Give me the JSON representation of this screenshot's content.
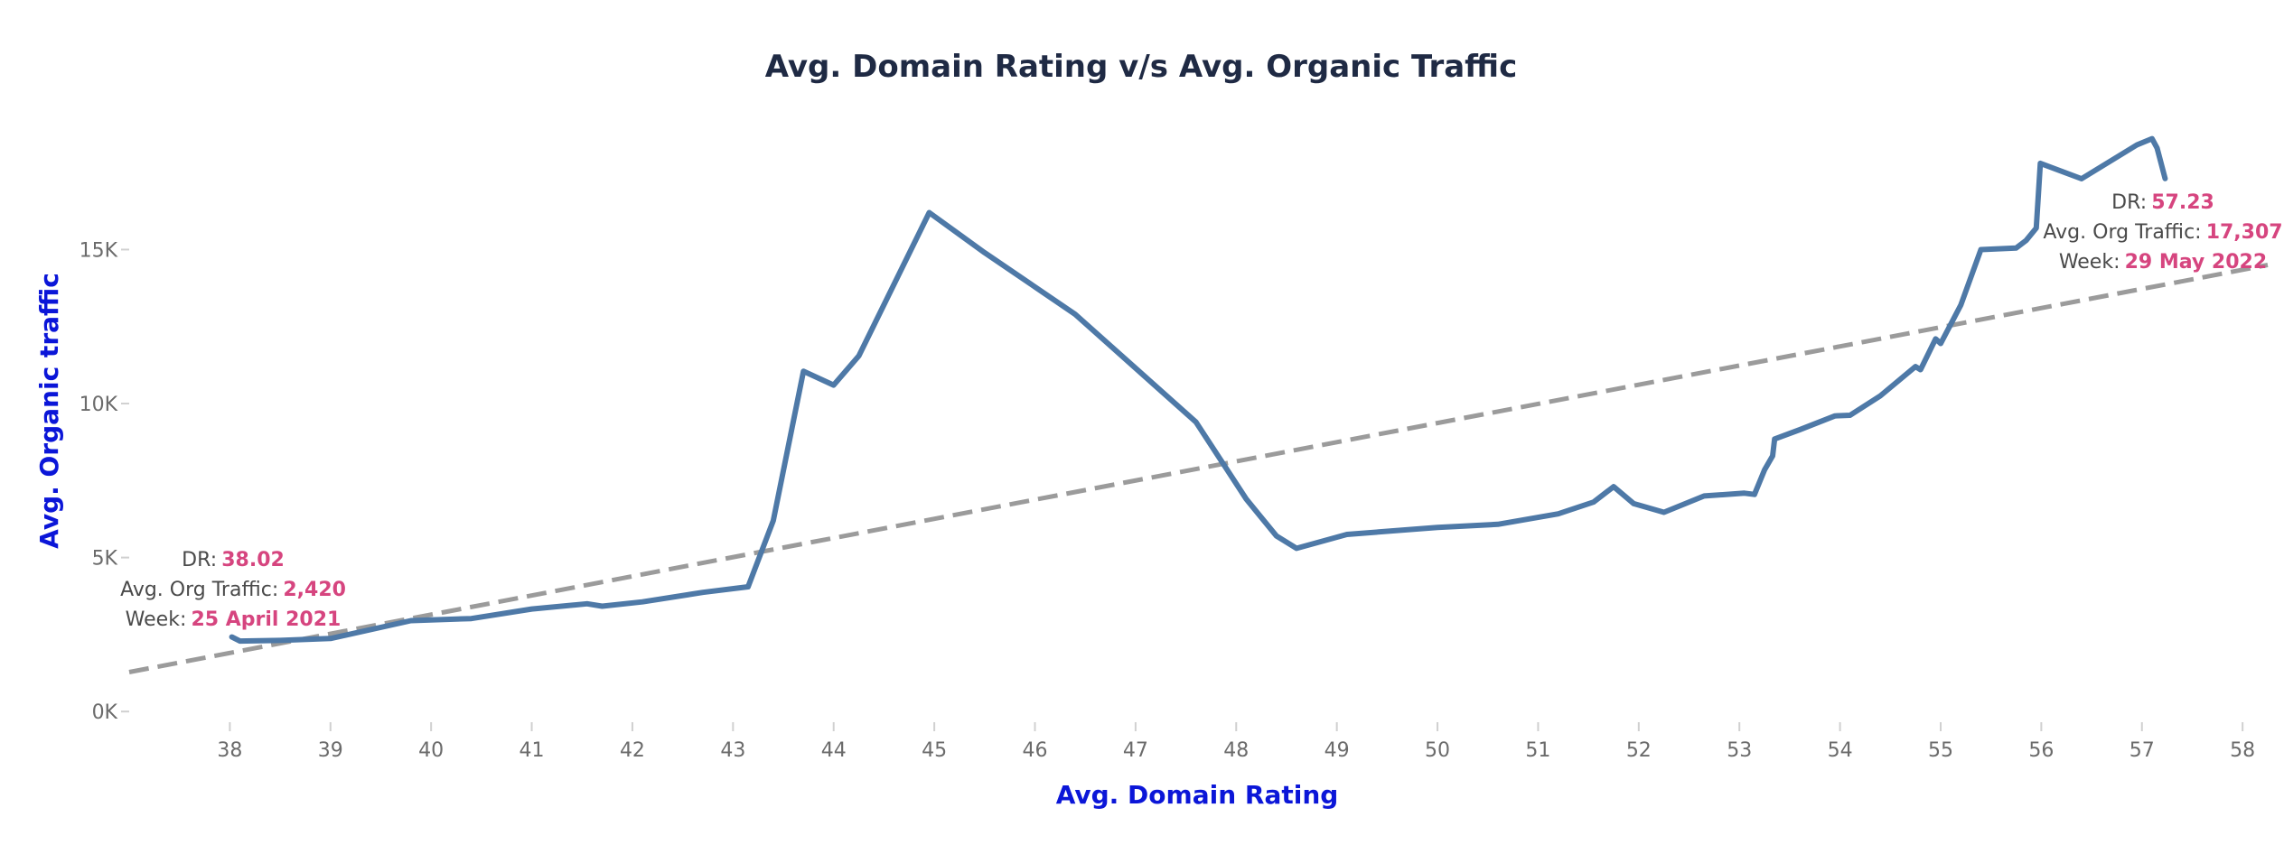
{
  "chart_data": {
    "type": "line",
    "title": "Avg. Domain Rating v/s Avg. Organic Traffic",
    "xlabel": "Avg. Domain Rating",
    "ylabel": "Avg. Organic traffic",
    "xlim": [
      37.0,
      58.25
    ],
    "ylim": [
      -200,
      19000
    ],
    "x_ticks": [
      38,
      39,
      40,
      41,
      42,
      43,
      44,
      45,
      46,
      47,
      48,
      49,
      50,
      51,
      52,
      53,
      54,
      55,
      56,
      57,
      58
    ],
    "y_ticks": [
      {
        "value": 0,
        "label": "0K"
      },
      {
        "value": 5000,
        "label": "5K"
      },
      {
        "value": 10000,
        "label": "10K"
      },
      {
        "value": 15000,
        "label": "15K"
      }
    ],
    "grid": false,
    "series": [
      {
        "color": "#4e79a7",
        "points": [
          [
            38.02,
            2420
          ],
          [
            38.1,
            2290
          ],
          [
            38.5,
            2310
          ],
          [
            39.0,
            2370
          ],
          [
            39.8,
            2950
          ],
          [
            40.4,
            3020
          ],
          [
            41.0,
            3330
          ],
          [
            41.55,
            3500
          ],
          [
            41.7,
            3420
          ],
          [
            42.1,
            3560
          ],
          [
            42.7,
            3870
          ],
          [
            43.15,
            4050
          ],
          [
            43.4,
            6200
          ],
          [
            43.7,
            11050
          ],
          [
            44.0,
            10600
          ],
          [
            44.25,
            11550
          ],
          [
            44.95,
            16200
          ],
          [
            45.5,
            14900
          ],
          [
            46.4,
            12900
          ],
          [
            47.6,
            9400
          ],
          [
            48.1,
            6900
          ],
          [
            48.4,
            5700
          ],
          [
            48.6,
            5300
          ],
          [
            49.1,
            5750
          ],
          [
            50.0,
            5980
          ],
          [
            50.6,
            6080
          ],
          [
            51.2,
            6420
          ],
          [
            51.55,
            6800
          ],
          [
            51.75,
            7300
          ],
          [
            51.95,
            6750
          ],
          [
            52.25,
            6470
          ],
          [
            52.65,
            7000
          ],
          [
            53.05,
            7090
          ],
          [
            53.15,
            7050
          ],
          [
            53.25,
            7850
          ],
          [
            53.33,
            8300
          ],
          [
            53.35,
            8850
          ],
          [
            53.6,
            9150
          ],
          [
            53.95,
            9600
          ],
          [
            54.1,
            9620
          ],
          [
            54.4,
            10250
          ],
          [
            54.75,
            11200
          ],
          [
            54.8,
            11100
          ],
          [
            54.95,
            12100
          ],
          [
            55.0,
            11950
          ],
          [
            55.2,
            13200
          ],
          [
            55.4,
            15000
          ],
          [
            55.75,
            15050
          ],
          [
            55.85,
            15300
          ],
          [
            55.95,
            15700
          ],
          [
            55.99,
            17800
          ],
          [
            56.4,
            17300
          ],
          [
            56.95,
            18400
          ],
          [
            57.1,
            18600
          ],
          [
            57.15,
            18300
          ],
          [
            57.23,
            17307
          ]
        ]
      }
    ],
    "trend_line": {
      "color": "#9b9b9b",
      "style": "dashed",
      "from": [
        37.0,
        1280
      ],
      "to": [
        58.25,
        14500
      ]
    },
    "annotations": [
      {
        "dr_label": "DR:",
        "dr_value": "38.02",
        "traffic_label": "Avg. Org Traffic:",
        "traffic_value": "2,420",
        "week_label": "Week:",
        "week_value": "25 April 2021"
      },
      {
        "dr_label": "DR:",
        "dr_value": "57.23",
        "traffic_label": "Avg. Org Traffic:",
        "traffic_value": "17,307",
        "week_label": "Week:",
        "week_value": "29 May 2022"
      }
    ]
  }
}
